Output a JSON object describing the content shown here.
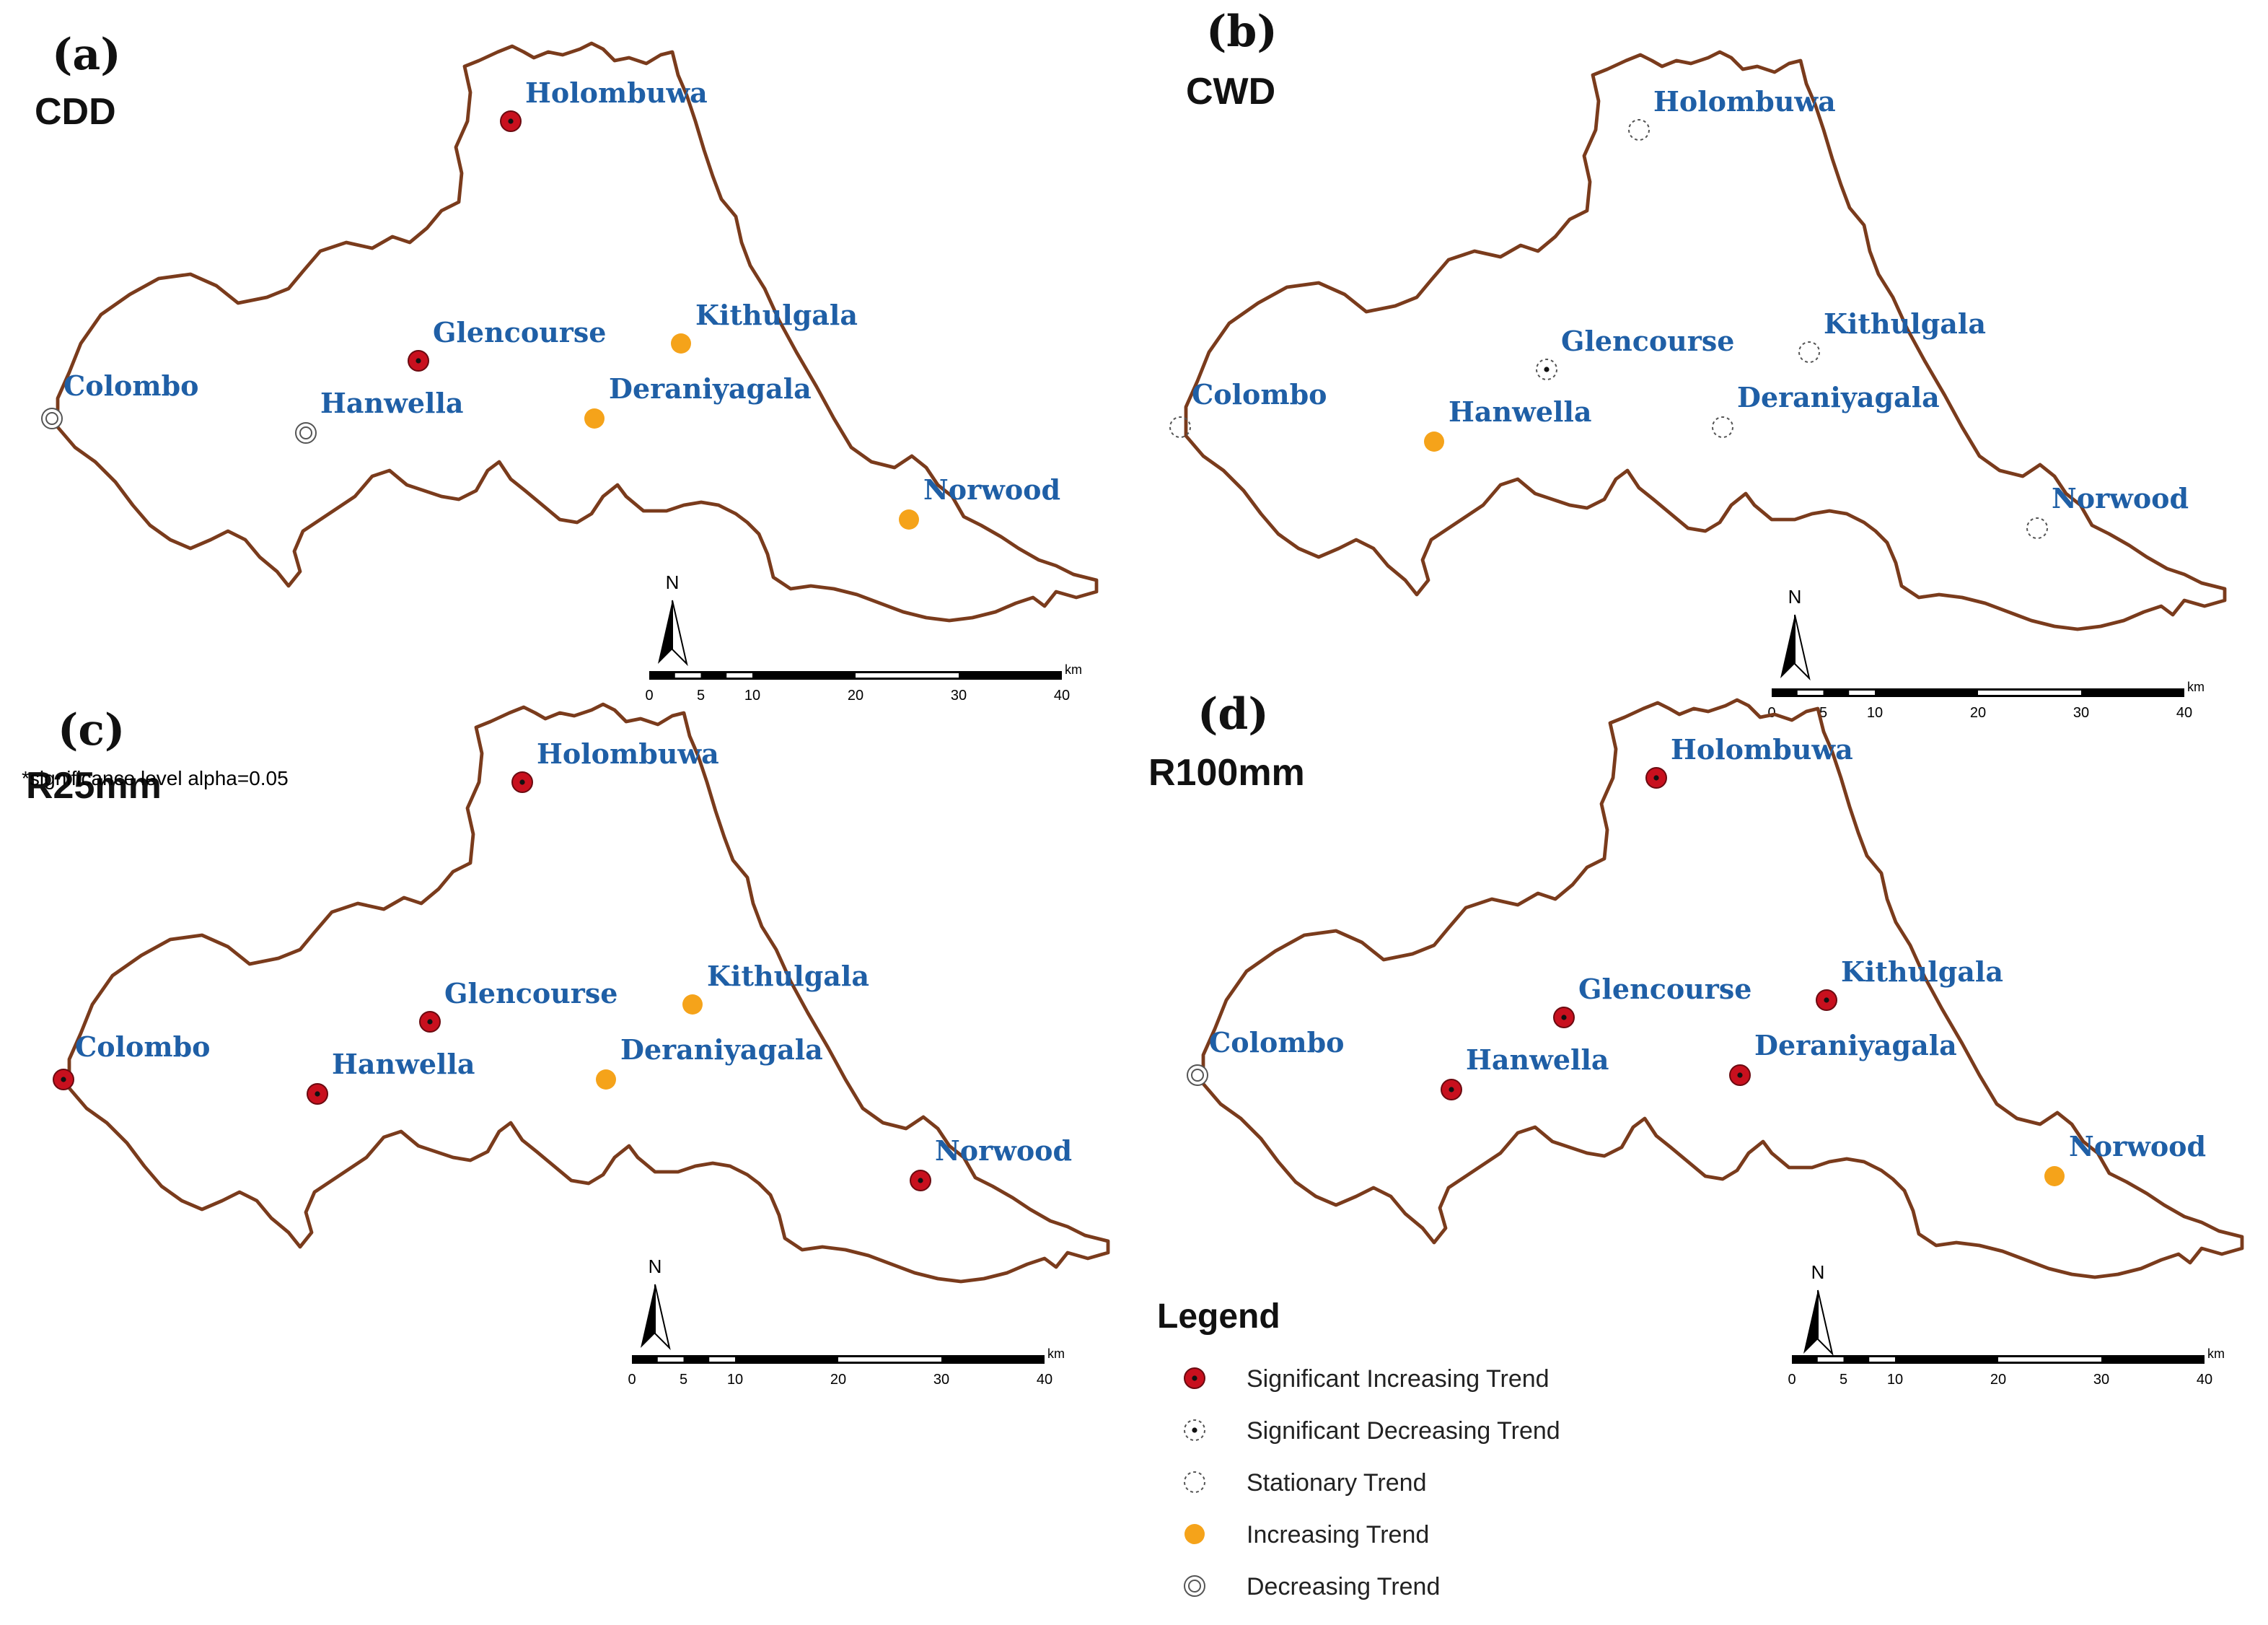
{
  "colors": {
    "boundary": "#7a3b1c",
    "station_label": "#1f5fa6",
    "sig_increasing": "#c8101e",
    "increasing": "#f5a31a",
    "neutral": "#555555"
  },
  "panels": [
    {
      "id": "a",
      "letter": "(a)",
      "index": "CDD",
      "stations": [
        {
          "name": "Holombuwa",
          "trend": "sig_increasing"
        },
        {
          "name": "Glencourse",
          "trend": "sig_increasing"
        },
        {
          "name": "Kithulgala",
          "trend": "increasing"
        },
        {
          "name": "Colombo",
          "trend": "decreasing"
        },
        {
          "name": "Hanwella",
          "trend": "decreasing"
        },
        {
          "name": "Deraniyagala",
          "trend": "increasing"
        },
        {
          "name": "Norwood",
          "trend": "increasing"
        }
      ]
    },
    {
      "id": "b",
      "letter": "(b)",
      "index": "CWD",
      "stations": [
        {
          "name": "Holombuwa",
          "trend": "stationary"
        },
        {
          "name": "Glencourse",
          "trend": "sig_decreasing"
        },
        {
          "name": "Kithulgala",
          "trend": "stationary"
        },
        {
          "name": "Colombo",
          "trend": "stationary"
        },
        {
          "name": "Hanwella",
          "trend": "increasing"
        },
        {
          "name": "Deraniyagala",
          "trend": "stationary"
        },
        {
          "name": "Norwood",
          "trend": "stationary"
        }
      ]
    },
    {
      "id": "c",
      "letter": "(c)",
      "index": "R25mm",
      "stations": [
        {
          "name": "Holombuwa",
          "trend": "sig_increasing"
        },
        {
          "name": "Glencourse",
          "trend": "sig_increasing"
        },
        {
          "name": "Kithulgala",
          "trend": "increasing"
        },
        {
          "name": "Colombo",
          "trend": "sig_increasing"
        },
        {
          "name": "Hanwella",
          "trend": "sig_increasing"
        },
        {
          "name": "Deraniyagala",
          "trend": "increasing"
        },
        {
          "name": "Norwood",
          "trend": "sig_increasing"
        }
      ]
    },
    {
      "id": "d",
      "letter": "(d)",
      "index": "R100mm",
      "stations": [
        {
          "name": "Holombuwa",
          "trend": "sig_increasing"
        },
        {
          "name": "Glencourse",
          "trend": "sig_increasing"
        },
        {
          "name": "Kithulgala",
          "trend": "sig_increasing"
        },
        {
          "name": "Colombo",
          "trend": "decreasing"
        },
        {
          "name": "Hanwella",
          "trend": "sig_increasing"
        },
        {
          "name": "Deraniyagala",
          "trend": "sig_increasing"
        },
        {
          "name": "Norwood",
          "trend": "increasing"
        }
      ]
    }
  ],
  "north_label": "N",
  "scale_bar": {
    "unit": "km",
    "ticks": [
      "0",
      "5",
      "10",
      "20",
      "30",
      "40"
    ]
  },
  "legend": {
    "title": "Legend",
    "items": [
      {
        "label": "Significant Increasing Trend",
        "symbol": "sig_increasing"
      },
      {
        "label": "Significant Decreasing Trend",
        "symbol": "sig_decreasing"
      },
      {
        "label": "Stationary Trend",
        "symbol": "stationary"
      },
      {
        "label": "Increasing Trend",
        "symbol": "increasing"
      },
      {
        "label": "Decreasing Trend",
        "symbol": "decreasing"
      }
    ]
  },
  "footnote": "*significance level alpha=0.05"
}
